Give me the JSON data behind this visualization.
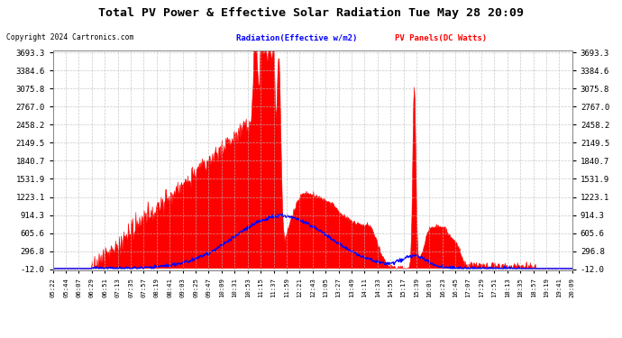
{
  "title": "Total PV Power & Effective Solar Radiation Tue May 28 20:09",
  "copyright": "Copyright 2024 Cartronics.com",
  "legend_radiation": "Radiation(Effective w/m2)",
  "legend_panels": "PV Panels(DC Watts)",
  "yticks": [
    3693.3,
    3384.6,
    3075.8,
    2767.0,
    2458.2,
    2149.5,
    1840.7,
    1531.9,
    1223.1,
    914.3,
    605.6,
    296.8,
    -12.0
  ],
  "ymin": -12.0,
  "ymax": 3693.3,
  "radiation_color": "#0000ff",
  "panels_color": "#ff0000",
  "plot_bg_color": "#ffffff",
  "grid_color": "#bbbbbb",
  "xtick_labels": [
    "05:22",
    "05:44",
    "06:07",
    "06:29",
    "06:51",
    "07:13",
    "07:35",
    "07:57",
    "08:19",
    "08:41",
    "09:03",
    "09:25",
    "09:47",
    "10:09",
    "10:31",
    "10:53",
    "11:15",
    "11:37",
    "11:59",
    "12:21",
    "12:43",
    "13:05",
    "13:27",
    "13:49",
    "14:11",
    "14:33",
    "14:55",
    "15:17",
    "15:39",
    "16:01",
    "16:23",
    "16:45",
    "17:07",
    "17:29",
    "17:51",
    "18:13",
    "18:35",
    "18:57",
    "19:19",
    "19:41",
    "20:09"
  ]
}
